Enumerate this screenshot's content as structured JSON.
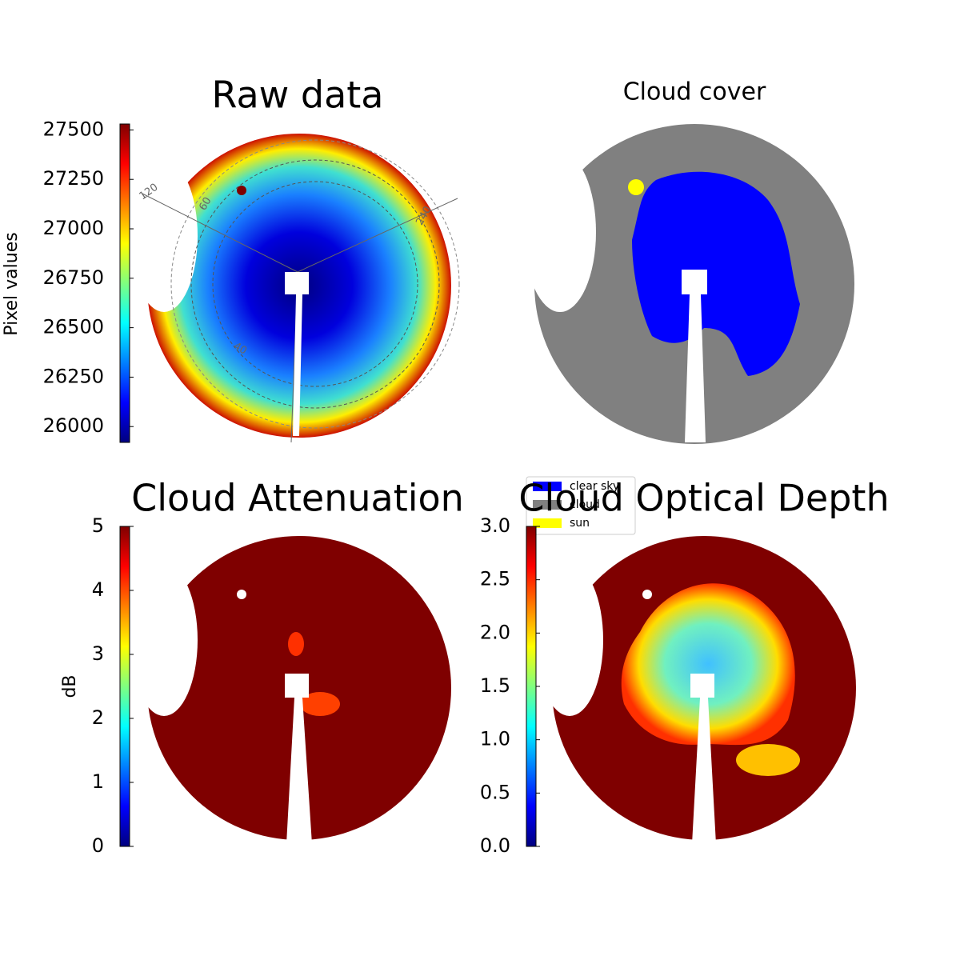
{
  "chart_data": [
    {
      "type": "image",
      "title": "Raw data",
      "colorbar_label": "Pixel values",
      "colormap": "jet",
      "ylim": [
        25920,
        27530
      ],
      "yticks": [
        26000,
        26250,
        26500,
        26750,
        27000,
        27250,
        27500
      ],
      "annotations": [
        "120",
        "60",
        "240",
        "40"
      ]
    },
    {
      "type": "image",
      "title": "Cloud cover",
      "series": [
        {
          "name": "clear sky",
          "color": "#0000ff"
        },
        {
          "name": "cloud",
          "color": "#808080"
        },
        {
          "name": "sun",
          "color": "#ffff00"
        }
      ]
    },
    {
      "type": "image",
      "title": "Cloud Attenuation",
      "colorbar_label": "dB",
      "colormap": "jet",
      "ylim": [
        0,
        5
      ],
      "yticks": [
        0,
        1,
        2,
        3,
        4,
        5
      ]
    },
    {
      "type": "image",
      "title": "Cloud Optical Depth",
      "colormap": "jet",
      "ylim": [
        0,
        3
      ],
      "yticks": [
        {
          "value": 0,
          "label": "0.0"
        },
        0.5,
        {
          "value": 1,
          "label": "1.0"
        },
        1.5,
        {
          "value": 2,
          "label": "2.0"
        },
        2.5,
        {
          "value": 3,
          "label": "3.0"
        }
      ]
    }
  ]
}
